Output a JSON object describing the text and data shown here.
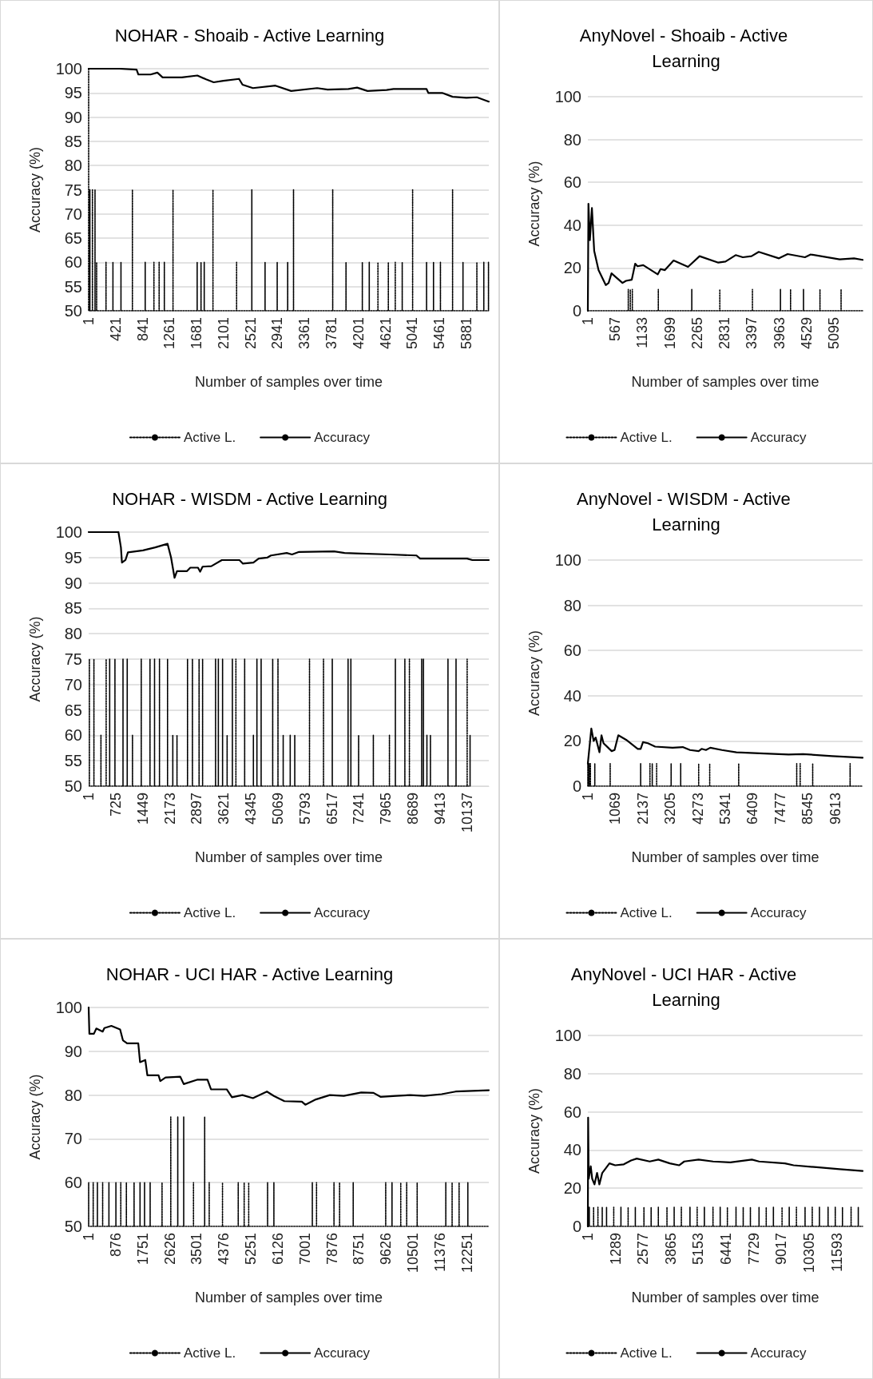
{
  "chart_data": [
    {
      "type": "line",
      "title": "NOHAR - Shoaib - Active Learning",
      "xlabel": "Number of samples over time",
      "ylabel": "Accuracy (%)",
      "xlim": [
        1,
        6230
      ],
      "xticks": [
        1,
        421,
        841,
        1261,
        1681,
        2101,
        2521,
        2941,
        3361,
        3781,
        4201,
        4621,
        5041,
        5461,
        5881
      ],
      "ylim": [
        50,
        100
      ],
      "yticks": [
        50,
        55,
        60,
        65,
        70,
        75,
        80,
        85,
        90,
        95,
        100
      ],
      "grid": "y",
      "legend": "bottom",
      "marker": "none",
      "series": [
        {
          "name": "Active L.",
          "color": "#000000",
          "line_style": "dotted",
          "x": [
            1,
            1,
            20,
            20,
            20,
            60,
            60,
            60,
            100,
            100,
            100,
            125,
            125,
            125,
            271,
            271,
            271,
            379,
            379,
            379,
            504,
            504,
            504,
            682,
            682,
            682,
            881,
            881,
            881,
            1017,
            1017,
            1017,
            1098,
            1098,
            1098,
            1179,
            1179,
            1179,
            1314,
            1314,
            1314,
            1690,
            1690,
            1690,
            1750,
            1750,
            1750,
            1800,
            1800,
            1800,
            1936,
            1936,
            1936,
            2304,
            2304,
            2304,
            2541,
            2541,
            2541,
            2747,
            2747,
            2747,
            2936,
            2936,
            2936,
            3099,
            3099,
            3099,
            3190,
            3190,
            3190,
            3800,
            3800,
            3800,
            4007,
            4007,
            4007,
            4261,
            4261,
            4261,
            4369,
            4369,
            4369,
            4504,
            4504,
            4504,
            4666,
            4666,
            4666,
            4774,
            4774,
            4774,
            4882,
            4882,
            4882,
            5044,
            5044,
            5044,
            5261,
            5261,
            5261,
            5369,
            5369,
            5369,
            5477,
            5477,
            5477,
            5666,
            5666,
            5666,
            5828,
            5828,
            5828,
            6044,
            6044,
            6044,
            6152,
            6152,
            6152,
            6225,
            6225,
            6225
          ],
          "values": [
            100,
            50,
            50,
            75,
            50,
            50,
            75,
            50,
            50,
            75,
            50,
            50,
            60,
            50,
            50,
            60,
            50,
            50,
            60,
            50,
            50,
            60,
            50,
            50,
            75,
            50,
            50,
            60,
            50,
            50,
            60,
            50,
            50,
            60,
            50,
            50,
            60,
            50,
            50,
            75,
            50,
            50,
            60,
            50,
            50,
            60,
            50,
            50,
            60,
            50,
            50,
            75,
            50,
            50,
            60,
            50,
            50,
            75,
            50,
            50,
            60,
            50,
            50,
            60,
            50,
            50,
            60,
            50,
            50,
            75,
            50,
            50,
            75,
            50,
            50,
            60,
            50,
            50,
            60,
            50,
            50,
            60,
            50,
            50,
            60,
            50,
            50,
            60,
            50,
            50,
            60,
            50,
            50,
            60,
            50,
            50,
            75,
            50,
            50,
            60,
            50,
            50,
            60,
            50,
            50,
            60,
            50,
            50,
            75,
            50,
            50,
            60,
            50,
            50,
            60,
            50,
            50,
            60,
            50,
            50,
            60,
            50
          ]
        },
        {
          "name": "Accuracy",
          "color": "#000000",
          "line_style": "solid",
          "x": [
            1,
            477,
            747,
            775,
            965,
            1071,
            1152,
            1450,
            1693,
            1828,
            1947,
            2098,
            2342,
            2396,
            2558,
            2909,
            3153,
            3558,
            3720,
            4045,
            4180,
            4342,
            4639,
            4747,
            5261,
            5288,
            5504,
            5666,
            5881,
            6044,
            6230
          ],
          "values": [
            100,
            100,
            99.8,
            98.8,
            98.8,
            99.2,
            98.2,
            98.2,
            98.6,
            97.8,
            97.2,
            97.5,
            97.9,
            96.7,
            96,
            96.5,
            95.4,
            96,
            95.7,
            95.8,
            96.1,
            95.4,
            95.6,
            95.8,
            95.8,
            95,
            95,
            94.2,
            94,
            94.1,
            93.2
          ]
        }
      ]
    },
    {
      "type": "line",
      "title": "AnyNovel - Shoaib - Active Learning",
      "xlabel": "Number of samples over time",
      "ylabel": "Accuracy (%)",
      "xlim": [
        1,
        5690
      ],
      "xticks": [
        1,
        567,
        1133,
        1699,
        2265,
        2831,
        3397,
        3963,
        4529,
        5095
      ],
      "ylim": [
        0,
        100
      ],
      "yticks": [
        0,
        20,
        40,
        60,
        80,
        100
      ],
      "grid": "y",
      "legend": "bottom",
      "marker": "none",
      "series": [
        {
          "name": "Active L.",
          "color": "#000000",
          "line_style": "dotted",
          "x": [
            1,
            838,
            838,
            838,
            880,
            880,
            880,
            922,
            922,
            922,
            1460,
            1460,
            1460,
            2153,
            2153,
            2153,
            2733,
            2733,
            2733,
            3409,
            3409,
            3409,
            3989,
            3989,
            3989,
            4198,
            4198,
            4198,
            4466,
            4466,
            4466,
            4807,
            4807,
            4807,
            5244,
            5244,
            5244,
            5690
          ],
          "values": [
            0,
            0,
            10,
            0,
            0,
            10,
            0,
            0,
            10,
            0,
            0,
            10,
            0,
            0,
            10,
            0,
            0,
            10,
            0,
            0,
            10,
            0,
            0,
            10,
            0,
            0,
            10,
            0,
            0,
            10,
            0,
            0,
            10,
            0,
            0,
            10,
            0,
            0
          ]
        },
        {
          "name": "Accuracy",
          "color": "#000000",
          "line_style": "solid",
          "x": [
            1,
            13,
            43,
            85,
            132,
            222,
            372,
            431,
            491,
            718,
            790,
            910,
            981,
            1029,
            1148,
            1447,
            1507,
            1596,
            1776,
            2075,
            2314,
            2702,
            2851,
            3061,
            3210,
            3390,
            3539,
            3958,
            4137,
            4496,
            4615,
            5214,
            5513,
            5690
          ],
          "values": [
            0,
            50,
            33,
            48,
            28,
            19,
            12,
            13,
            17.5,
            13,
            14,
            14.5,
            22,
            20.8,
            21.3,
            17,
            19.5,
            19,
            23.5,
            20.5,
            25.5,
            22.5,
            23,
            26,
            25,
            25.5,
            27.5,
            24.5,
            26.5,
            25,
            26.3,
            24,
            24.5,
            23.8
          ]
        }
      ]
    },
    {
      "type": "line",
      "title": "NOHAR - WISDM - Active Learning",
      "xlabel": "Number of samples over time",
      "ylabel": "Accuracy (%)",
      "xlim": [
        1,
        10720
      ],
      "xticks": [
        1,
        725,
        1449,
        2173,
        2897,
        3621,
        4345,
        5069,
        5793,
        6517,
        7241,
        7965,
        8689,
        9413,
        10137
      ],
      "ylim": [
        50,
        100
      ],
      "yticks": [
        50,
        55,
        60,
        65,
        70,
        75,
        80,
        85,
        90,
        95,
        100
      ],
      "grid": "y",
      "legend": "bottom",
      "marker": "none",
      "series": [
        {
          "name": "Active L.",
          "color": "#000000",
          "line_style": "dotted",
          "x": [
            20,
            20,
            20,
            142,
            142,
            142,
            330,
            330,
            330,
            470,
            470,
            470,
            564,
            564,
            564,
            705,
            705,
            705,
            921,
            921,
            921,
            1034,
            1034,
            1034,
            1175,
            1175,
            1175,
            1410,
            1410,
            1410,
            1644,
            1644,
            1644,
            1766,
            1766,
            1766,
            1898,
            1898,
            1898,
            2114,
            2114,
            2114,
            2255,
            2255,
            2255,
            2367,
            2367,
            2367,
            2649,
            2649,
            2649,
            2781,
            2781,
            2781,
            2959,
            2959,
            2959,
            3053,
            3053,
            3053,
            3400,
            3400,
            3400,
            3475,
            3475,
            3475,
            3588,
            3588,
            3588,
            3710,
            3710,
            3710,
            3851,
            3851,
            3851,
            3945,
            3945,
            3945,
            4180,
            4180,
            4180,
            4414,
            4414,
            4414,
            4508,
            4508,
            4508,
            4621,
            4621,
            4621,
            4931,
            4931,
            4931,
            5072,
            5072,
            5072,
            5212,
            5212,
            5212,
            5400,
            5400,
            5400,
            5522,
            5522,
            5522,
            5917,
            5917,
            5917,
            6292,
            6292,
            6292,
            6527,
            6527,
            6527,
            6950,
            6950,
            6950,
            7025,
            7025,
            7025,
            7232,
            7232,
            7232,
            7627,
            7627,
            7627,
            8058,
            8058,
            8058,
            8217,
            8217,
            8217,
            8471,
            8471,
            8471,
            8593,
            8593,
            8593,
            8922,
            8922,
            8922,
            8969,
            8969,
            8969,
            9062,
            9062,
            9062,
            9156,
            9156,
            9156,
            9626,
            9626,
            9626,
            9842,
            9842,
            9842,
            10140,
            10140,
            10140,
            10218,
            10218,
            10218
          ],
          "values": [
            50,
            75,
            50,
            50,
            75,
            50,
            50,
            60,
            50,
            50,
            75,
            50,
            50,
            75,
            50,
            50,
            75,
            50,
            50,
            75,
            50,
            50,
            75,
            50,
            50,
            60,
            50,
            50,
            75,
            50,
            50,
            75,
            50,
            50,
            75,
            50,
            50,
            75,
            50,
            50,
            75,
            50,
            50,
            60,
            50,
            50,
            60,
            50,
            50,
            75,
            50,
            50,
            75,
            50,
            50,
            75,
            50,
            50,
            75,
            50,
            50,
            75,
            50,
            50,
            75,
            50,
            50,
            75,
            50,
            50,
            60,
            50,
            50,
            75,
            50,
            50,
            75,
            50,
            50,
            75,
            50,
            50,
            60,
            50,
            50,
            75,
            50,
            50,
            75,
            50,
            50,
            75,
            50,
            50,
            75,
            50,
            50,
            60,
            50,
            50,
            60,
            50,
            50,
            60,
            50,
            50,
            75,
            50,
            50,
            75,
            50,
            50,
            75,
            50,
            50,
            75,
            50,
            50,
            75,
            50,
            50,
            60,
            50,
            50,
            60,
            50,
            50,
            60,
            50,
            50,
            75,
            50,
            50,
            75,
            50,
            50,
            75,
            50,
            50,
            75,
            50,
            50,
            75,
            50,
            50,
            60,
            50,
            50,
            60,
            50,
            50,
            75,
            50,
            50,
            75,
            50,
            50,
            75,
            50,
            50,
            60,
            50
          ]
        },
        {
          "name": "Accuracy",
          "color": "#000000",
          "line_style": "solid",
          "x": [
            1,
            799,
            865,
            893,
            987,
            1053,
            1457,
            1785,
            2114,
            2208,
            2302,
            2367,
            2630,
            2724,
            2930,
            2987,
            3053,
            3288,
            3569,
            4039,
            4133,
            4414,
            4555,
            4790,
            4884,
            5307,
            5448,
            5636,
            6575,
            6857,
            7139,
            8078,
            8783,
            8877,
            10137,
            10278,
            10720
          ],
          "values": [
            100,
            100,
            97,
            94,
            94.5,
            96,
            96.4,
            97,
            97.7,
            95,
            91,
            92.3,
            92.3,
            93,
            93,
            92.2,
            93.2,
            93.3,
            94.5,
            94.5,
            93.8,
            94,
            94.8,
            95,
            95.4,
            95.9,
            95.6,
            96.1,
            96.2,
            95.9,
            95.8,
            95.6,
            95.4,
            94.8,
            94.8,
            94.5,
            94.5
          ]
        }
      ]
    },
    {
      "type": "line",
      "title": "AnyNovel - WISDM - Active Learning",
      "xlabel": "Number of samples over time",
      "ylabel": "Accuracy (%)",
      "xlim": [
        1,
        10684
      ],
      "xticks": [
        1,
        1069,
        2137,
        3205,
        4273,
        5341,
        6409,
        7477,
        8545,
        9613
      ],
      "ylim": [
        0,
        100
      ],
      "yticks": [
        0,
        20,
        40,
        60,
        80,
        100
      ],
      "grid": "y",
      "legend": "bottom",
      "marker": "none",
      "series": [
        {
          "name": "Active L.",
          "color": "#000000",
          "line_style": "dotted",
          "x": [
            1,
            1,
            1,
            50,
            50,
            50,
            100,
            100,
            100,
            271,
            271,
            271,
            869,
            869,
            869,
            2054,
            2054,
            2054,
            2415,
            2415,
            2415,
            2505,
            2505,
            2505,
            2675,
            2675,
            2675,
            3239,
            3239,
            3239,
            3611,
            3611,
            3611,
            4310,
            4310,
            4310,
            4739,
            4739,
            4739,
            5866,
            5866,
            5866,
            8122,
            8122,
            8122,
            8257,
            8257,
            8257,
            8743,
            8743,
            8743,
            10198,
            10198,
            10198,
            10684
          ],
          "values": [
            0,
            10,
            0,
            0,
            10,
            0,
            0,
            10,
            0,
            0,
            10,
            0,
            0,
            10,
            0,
            0,
            10,
            0,
            0,
            10,
            0,
            0,
            10,
            0,
            0,
            10,
            0,
            0,
            10,
            0,
            0,
            10,
            0,
            0,
            10,
            0,
            0,
            10,
            0,
            0,
            10,
            0,
            0,
            10,
            0,
            0,
            10,
            0,
            0,
            10,
            0,
            0,
            10,
            0,
            0
          ]
        },
        {
          "name": "Accuracy",
          "color": "#000000",
          "line_style": "solid",
          "x": [
            1,
            136,
            226,
            306,
            452,
            531,
            610,
            926,
            1039,
            1185,
            1490,
            1941,
            2054,
            2144,
            2336,
            2618,
            3295,
            3690,
            3972,
            4310,
            4423,
            4592,
            4761,
            5212,
            5776,
            6678,
            7806,
            8370,
            9498,
            10684
          ],
          "values": [
            10,
            25.5,
            20,
            21.5,
            15,
            22.5,
            19,
            15.5,
            16,
            22.5,
            20.5,
            16.5,
            16.5,
            19.5,
            19,
            17.5,
            17,
            17.3,
            16,
            15.5,
            16.5,
            16,
            17,
            16,
            15,
            14.5,
            14,
            14.2,
            13.3,
            12.6
          ]
        }
      ]
    },
    {
      "type": "line",
      "title": "NOHAR - UCI HAR - Active Learning",
      "xlabel": "Number of samples over time",
      "ylabel": "Accuracy (%)",
      "xlim": [
        1,
        12952
      ],
      "xticks": [
        1,
        876,
        1751,
        2626,
        3501,
        4376,
        5251,
        6126,
        7001,
        7876,
        8751,
        9626,
        10501,
        11376,
        12251
      ],
      "ylim": [
        50,
        100
      ],
      "yticks": [
        50,
        60,
        70,
        80,
        90,
        100
      ],
      "grid": "y",
      "legend": "bottom",
      "marker": "none",
      "series": [
        {
          "name": "Active L.",
          "color": "#000000",
          "line_style": "dotted",
          "x": [
            1,
            1,
            1,
            148,
            148,
            148,
            284,
            284,
            284,
            454,
            454,
            454,
            657,
            657,
            657,
            883,
            883,
            883,
            1041,
            1041,
            1041,
            1222,
            1222,
            1222,
            1471,
            1471,
            1471,
            1664,
            1664,
            1664,
            1810,
            1810,
            1810,
            1991,
            1991,
            1991,
            2376,
            2376,
            2376,
            2659,
            2659,
            2659,
            2885,
            2885,
            2885,
            3077,
            3077,
            3077,
            3394,
            3394,
            3394,
            3756,
            3756,
            3756,
            3903,
            3903,
            3903,
            4333,
            4333,
            4333,
            4842,
            4842,
            4842,
            5034,
            5034,
            5034,
            5181,
            5181,
            5181,
            5792,
            5792,
            5792,
            5996,
            5996,
            5996,
            7240,
            7240,
            7240,
            7376,
            7376,
            7376,
            7941,
            7941,
            7941,
            8122,
            8122,
            8122,
            8563,
            8563,
            8563,
            9615,
            9615,
            9615,
            9819,
            9819,
            9819,
            10102,
            10102,
            10102,
            10294,
            10294,
            10294,
            10633,
            10633,
            10633,
            11560,
            11560,
            11560,
            11764,
            11764,
            11764,
            11990,
            11990,
            11990,
            12273,
            12273,
            12273,
            12952
          ],
          "values": [
            50,
            60,
            50,
            50,
            60,
            50,
            50,
            60,
            50,
            50,
            60,
            50,
            50,
            60,
            50,
            50,
            60,
            50,
            50,
            60,
            50,
            50,
            60,
            50,
            50,
            60,
            50,
            50,
            60,
            50,
            50,
            60,
            50,
            50,
            60,
            50,
            50,
            60,
            50,
            50,
            75,
            50,
            50,
            75,
            50,
            50,
            75,
            50,
            50,
            60,
            50,
            50,
            75,
            50,
            50,
            60,
            50,
            50,
            60,
            50,
            50,
            60,
            50,
            50,
            60,
            50,
            50,
            60,
            50,
            50,
            60,
            50,
            50,
            60,
            50,
            50,
            60,
            50,
            50,
            60,
            50,
            50,
            60,
            50,
            50,
            60,
            50,
            50,
            60,
            50,
            50,
            60,
            50,
            50,
            60,
            50,
            50,
            60,
            50,
            50,
            60,
            50,
            50,
            60,
            50,
            50,
            60,
            50,
            50,
            60,
            50,
            50,
            60,
            50,
            50,
            60,
            50,
            50
          ]
        },
        {
          "name": "Accuracy",
          "color": "#000000",
          "line_style": "solid",
          "x": [
            1,
            24,
            171,
            250,
            454,
            510,
            736,
            1019,
            1110,
            1245,
            1607,
            1664,
            1834,
            1901,
            2263,
            2320,
            2489,
            2964,
            3078,
            3508,
            3847,
            3960,
            4469,
            4639,
            4978,
            5317,
            5770,
            5996,
            6336,
            6901,
            7014,
            7354,
            7806,
            8259,
            8824,
            9220,
            9446,
            9955,
            10407,
            10860,
            11425,
            11878,
            12952
          ],
          "values": [
            100,
            94,
            94,
            95.2,
            94.5,
            95.3,
            95.8,
            95,
            92.5,
            91.8,
            91.8,
            87.5,
            88,
            84.5,
            84.5,
            83.2,
            84,
            84.2,
            82.5,
            83.5,
            83.5,
            81.3,
            81.3,
            79.5,
            80,
            79.3,
            80.8,
            79.8,
            78.6,
            78.5,
            77.8,
            79,
            80,
            79.8,
            80.6,
            80.5,
            79.6,
            79.8,
            80,
            79.8,
            80.2,
            80.8,
            81.1
          ]
        }
      ]
    },
    {
      "type": "line",
      "title": "AnyNovel - UCI HAR - Active Learning",
      "xlabel": "Number of samples over time",
      "ylabel": "Accuracy (%)",
      "xlim": [
        1,
        12799
      ],
      "xticks": [
        1,
        1289,
        2577,
        3865,
        5153,
        6441,
        7729,
        9017,
        10305,
        11593
      ],
      "ylim": [
        0,
        100
      ],
      "yticks": [
        0,
        20,
        40,
        60,
        80,
        100
      ],
      "grid": "y",
      "legend": "bottom",
      "marker": "none",
      "series": [
        {
          "name": "Active L.",
          "color": "#000000",
          "line_style": "dotted",
          "x": [
            1,
            68,
            68,
            68,
            269,
            269,
            269,
            470,
            470,
            470,
            671,
            671,
            671,
            872,
            872,
            872,
            1207,
            1207,
            1207,
            1542,
            1542,
            1542,
            1877,
            1877,
            1877,
            2212,
            2212,
            2212,
            2614,
            2614,
            2614,
            2949,
            2949,
            2949,
            3284,
            3284,
            3284,
            3686,
            3686,
            3686,
            4021,
            4021,
            4021,
            4356,
            4356,
            4356,
            4758,
            4758,
            4758,
            5093,
            5093,
            5093,
            5428,
            5428,
            5428,
            5830,
            5830,
            5830,
            6165,
            6165,
            6165,
            6500,
            6500,
            6500,
            6902,
            6902,
            6902,
            7237,
            7237,
            7237,
            7572,
            7572,
            7572,
            7974,
            7974,
            7974,
            8309,
            8309,
            8309,
            8644,
            8644,
            8644,
            9046,
            9046,
            9046,
            9381,
            9381,
            9381,
            9716,
            9716,
            9716,
            10118,
            10118,
            10118,
            10453,
            10453,
            10453,
            10788,
            10788,
            10788,
            11190,
            11190,
            11190,
            11525,
            11525,
            11525,
            11860,
            11860,
            11860,
            12262,
            12262,
            12262,
            12597,
            12597,
            12597,
            12799
          ],
          "values": [
            0,
            0,
            10,
            0,
            0,
            10,
            0,
            0,
            10,
            0,
            0,
            10,
            0,
            0,
            10,
            0,
            0,
            10,
            0,
            0,
            10,
            0,
            0,
            10,
            0,
            0,
            10,
            0,
            0,
            10,
            0,
            0,
            10,
            0,
            0,
            10,
            0,
            0,
            10,
            0,
            0,
            10,
            0,
            0,
            10,
            0,
            0,
            10,
            0,
            0,
            10,
            0,
            0,
            10,
            0,
            0,
            10,
            0,
            0,
            10,
            0,
            0,
            10,
            0,
            0,
            10,
            0,
            0,
            10,
            0,
            0,
            10,
            0,
            0,
            10,
            0,
            0,
            10,
            0,
            0,
            10,
            0,
            0,
            10,
            0,
            0,
            10,
            0,
            0,
            10,
            0,
            0,
            10,
            0,
            0,
            10,
            0,
            0,
            10,
            0,
            0,
            10,
            0,
            0,
            10,
            0,
            0,
            10,
            0,
            0,
            10,
            0,
            0,
            10,
            0,
            0
          ]
        },
        {
          "name": "Accuracy",
          "color": "#000000",
          "line_style": "solid",
          "x": [
            1,
            14,
            41,
            135,
            202,
            309,
            430,
            537,
            671,
            805,
            1006,
            1274,
            1676,
            2011,
            2279,
            2882,
            3284,
            3820,
            4249,
            4490,
            5160,
            5831,
            6635,
            7640,
            7975,
            9181,
            9583,
            10655,
            11727,
            12799
          ],
          "values": [
            0,
            57,
            25,
            31.5,
            25,
            22,
            28,
            22,
            28,
            30,
            33,
            32,
            32.5,
            34.5,
            35.5,
            34,
            35,
            33,
            32,
            34,
            35,
            34,
            33.5,
            35,
            34,
            33,
            32,
            31,
            30,
            29
          ]
        }
      ]
    }
  ]
}
